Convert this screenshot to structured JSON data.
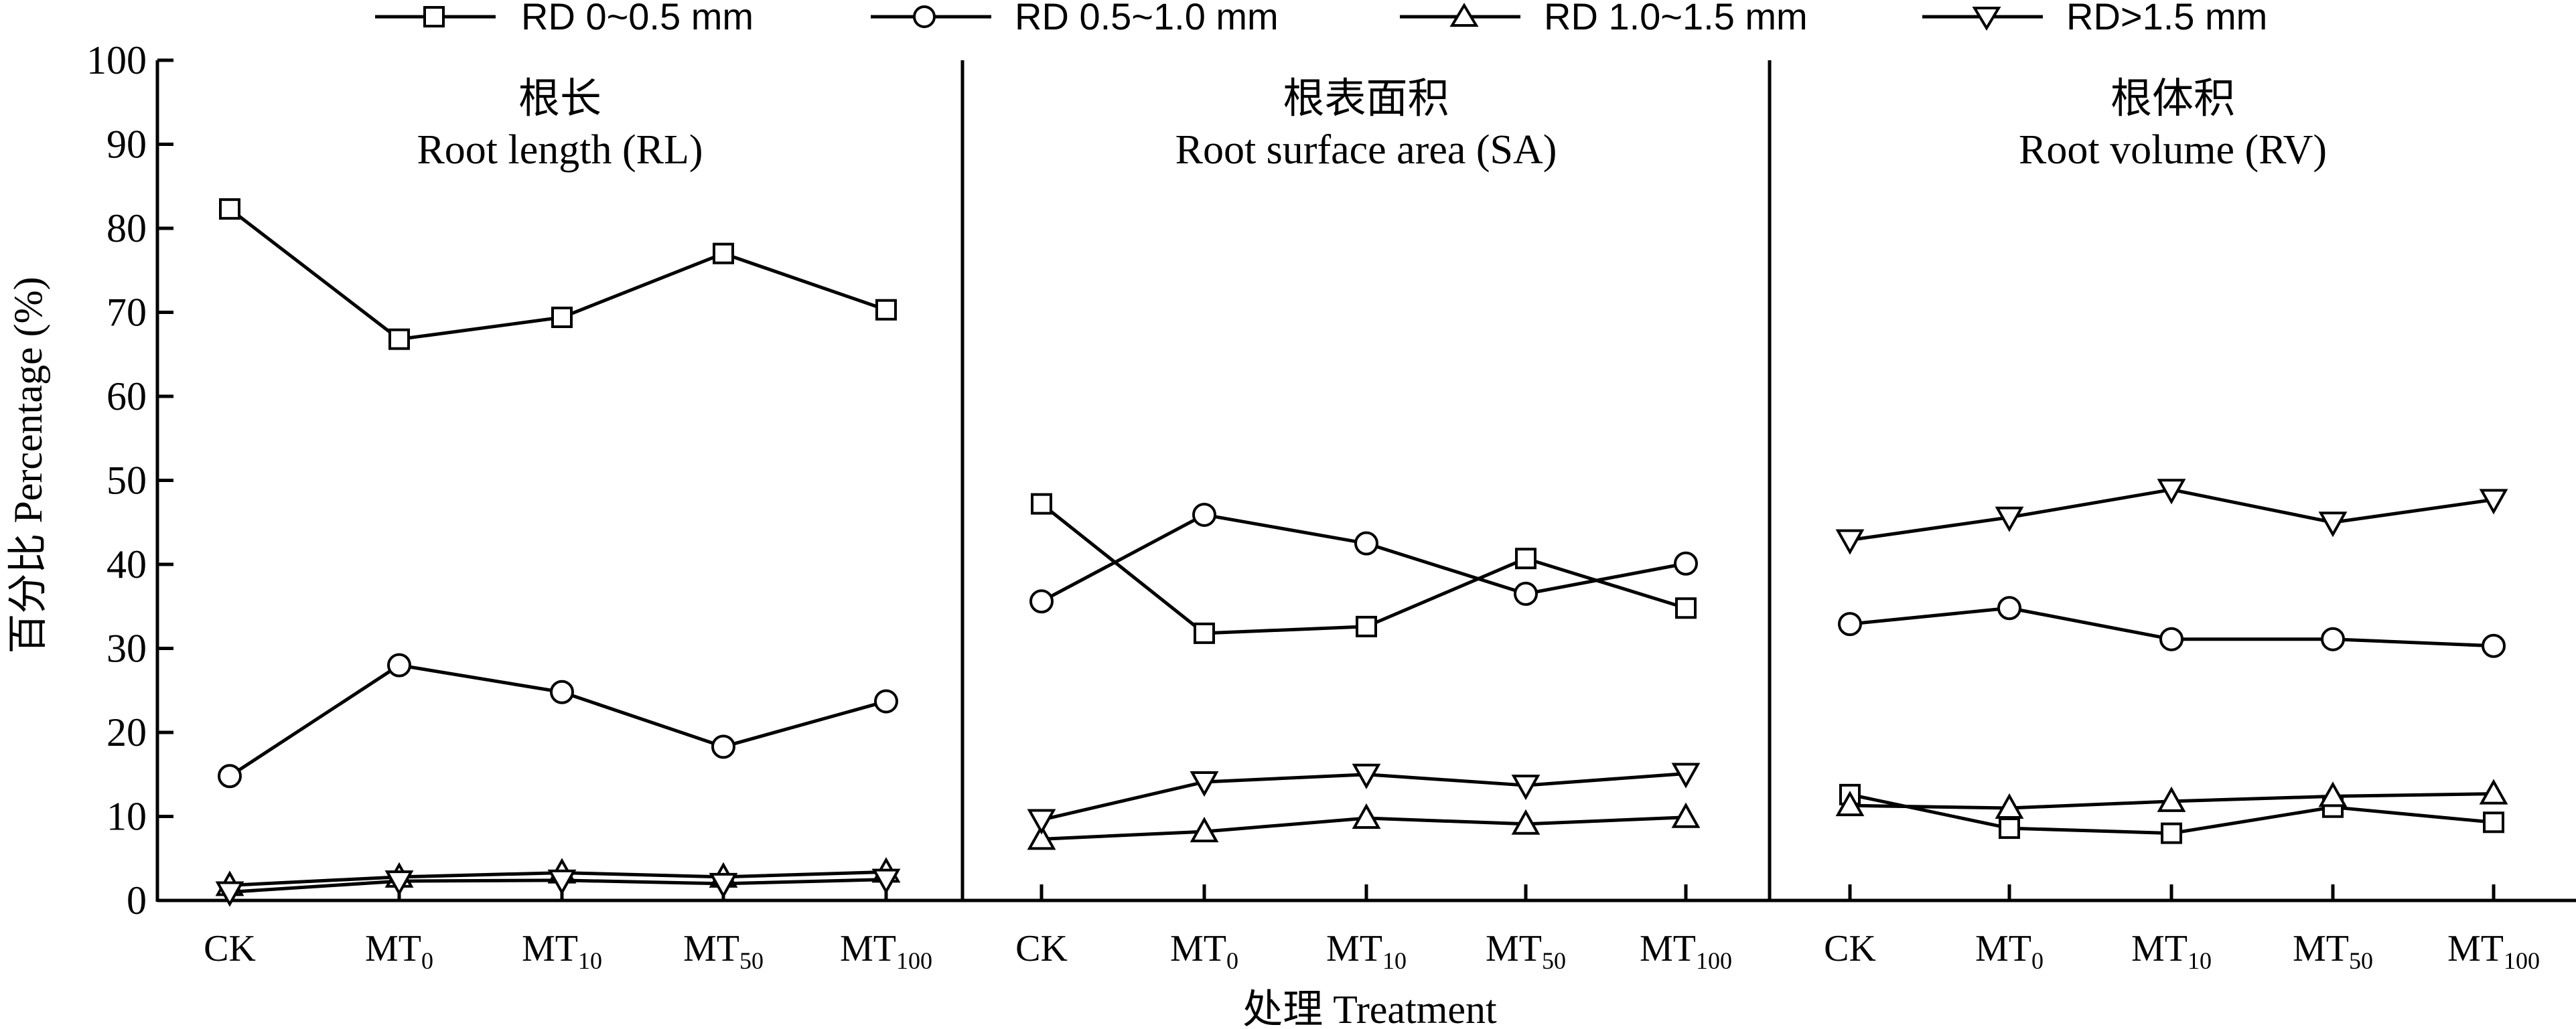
{
  "legend": {
    "items": [
      {
        "label": "RD 0~0.5 mm",
        "marker": "square"
      },
      {
        "label": "RD 0.5~1.0 mm",
        "marker": "circle"
      },
      {
        "label": "RD 1.0~1.5 mm",
        "marker": "triangle-up"
      },
      {
        "label": "RD>1.5 mm",
        "marker": "triangle-down"
      }
    ]
  },
  "axis": {
    "ylabel": "百分比 Percentage (%)",
    "xlabel": "处理 Treatment",
    "y_ticks": [
      "0",
      "10",
      "20",
      "30",
      "40",
      "50",
      "60",
      "70",
      "80",
      "90",
      "100"
    ],
    "x_ticks": [
      {
        "main": "CK",
        "sub": ""
      },
      {
        "main": "MT",
        "sub": "0"
      },
      {
        "main": "MT",
        "sub": "10"
      },
      {
        "main": "MT",
        "sub": "50"
      },
      {
        "main": "MT",
        "sub": "100"
      }
    ]
  },
  "chart_data": [
    {
      "type": "line",
      "title_cn": "根长",
      "title_en": "Root length (RL)",
      "categories": [
        "CK",
        "MT0",
        "MT10",
        "MT50",
        "MT100"
      ],
      "ylim": [
        0,
        100
      ],
      "series": [
        {
          "name": "RD 0~0.5 mm",
          "marker": "square",
          "values": [
            82.3,
            66.8,
            69.4,
            77.0,
            70.3
          ]
        },
        {
          "name": "RD 0.5~1.0 mm",
          "marker": "circle",
          "values": [
            14.8,
            28.0,
            24.8,
            18.3,
            23.7
          ]
        },
        {
          "name": "RD 1.0~1.5 mm",
          "marker": "triangle-up",
          "values": [
            1.8,
            2.8,
            3.3,
            2.8,
            3.4
          ]
        },
        {
          "name": "RD>1.5 mm",
          "marker": "triangle-down",
          "values": [
            1.0,
            2.3,
            2.4,
            2.0,
            2.5
          ]
        }
      ]
    },
    {
      "type": "line",
      "title_cn": "根表面积",
      "title_en": "Root surface area (SA)",
      "categories": [
        "CK",
        "MT0",
        "MT10",
        "MT50",
        "MT100"
      ],
      "ylim": [
        0,
        100
      ],
      "series": [
        {
          "name": "RD 0~0.5 mm",
          "marker": "square",
          "values": [
            47.2,
            31.8,
            32.6,
            40.7,
            34.8
          ]
        },
        {
          "name": "RD 0.5~1.0 mm",
          "marker": "circle",
          "values": [
            35.6,
            45.9,
            42.5,
            36.5,
            40.1
          ]
        },
        {
          "name": "RD 1.0~1.5 mm",
          "marker": "triangle-up",
          "values": [
            7.3,
            8.2,
            9.8,
            9.1,
            9.9
          ]
        },
        {
          "name": "RD>1.5 mm",
          "marker": "triangle-down",
          "values": [
            9.6,
            14.1,
            15.0,
            13.7,
            15.1
          ]
        }
      ]
    },
    {
      "type": "line",
      "title_cn": "根体积",
      "title_en": "Root volume (RV)",
      "categories": [
        "CK",
        "MT0",
        "MT10",
        "MT50",
        "MT100"
      ],
      "ylim": [
        0,
        100
      ],
      "series": [
        {
          "name": "RD 0~0.5 mm",
          "marker": "square",
          "values": [
            12.6,
            8.6,
            8.0,
            11.1,
            9.3
          ]
        },
        {
          "name": "RD 0.5~1.0 mm",
          "marker": "circle",
          "values": [
            32.9,
            34.8,
            31.1,
            31.1,
            30.3
          ]
        },
        {
          "name": "RD 1.0~1.5 mm",
          "marker": "triangle-up",
          "values": [
            11.3,
            11.0,
            11.8,
            12.4,
            12.7
          ]
        },
        {
          "name": "RD>1.5 mm",
          "marker": "triangle-down",
          "values": [
            42.9,
            45.6,
            48.9,
            45.0,
            47.7
          ]
        }
      ]
    }
  ]
}
